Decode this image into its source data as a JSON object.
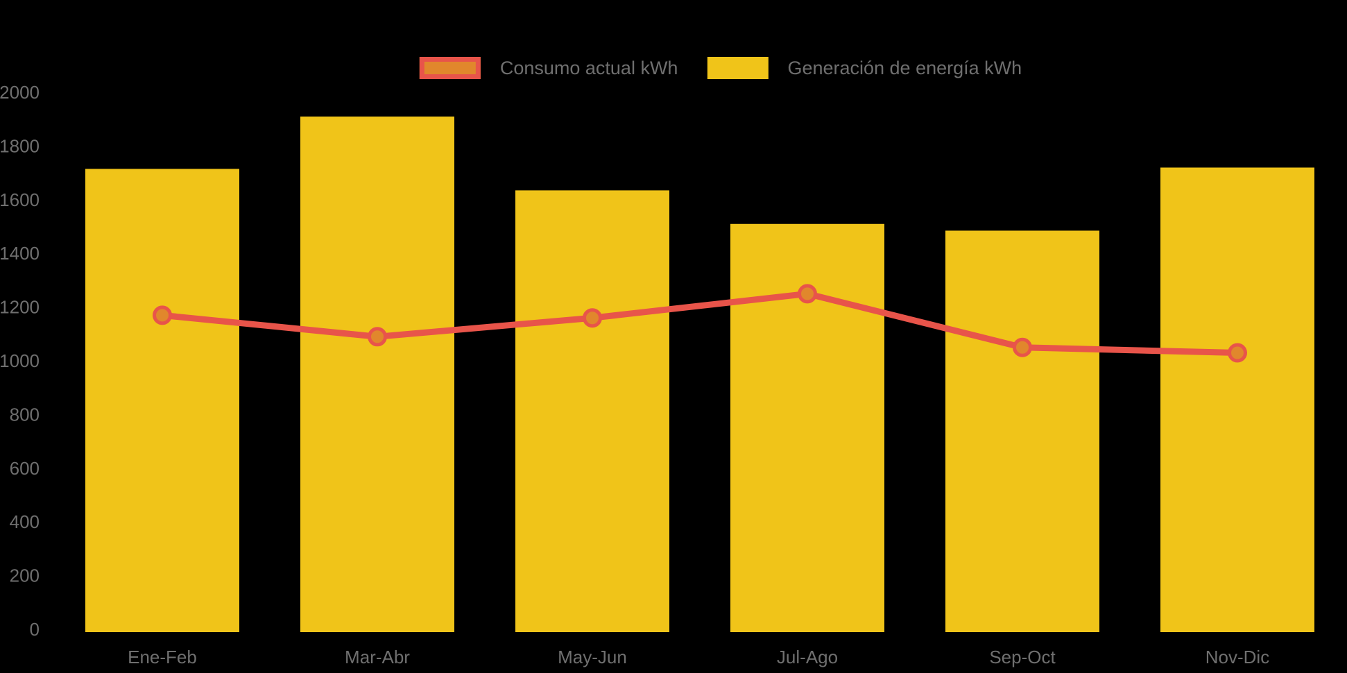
{
  "chart_data": {
    "type": "combo",
    "title": "",
    "categories": [
      "Ene-Feb",
      "Mar-Abr",
      "May-Jun",
      "Jul-Ago",
      "Sep-Oct",
      "Nov-Dic"
    ],
    "series": [
      {
        "name": "Consumo actual kWh",
        "type": "line",
        "values": [
          1180,
          1100,
          1170,
          1260,
          1060,
          1040
        ],
        "color": "#e8544a",
        "marker_fill": "#e1872c"
      },
      {
        "name": "Generación de energía kWh",
        "type": "bar",
        "values": [
          1725,
          1920,
          1645,
          1520,
          1495,
          1730
        ],
        "color": "#f0c419"
      }
    ],
    "ylim": [
      0,
      2000
    ],
    "yticks": [
      0,
      200,
      400,
      600,
      800,
      1000,
      1200,
      1400,
      1600,
      1800,
      2000
    ],
    "xlabel": "",
    "ylabel": "",
    "legend_position": "top",
    "grid": false,
    "background": "#000000",
    "axis_label_color": "#6f6f6f"
  }
}
